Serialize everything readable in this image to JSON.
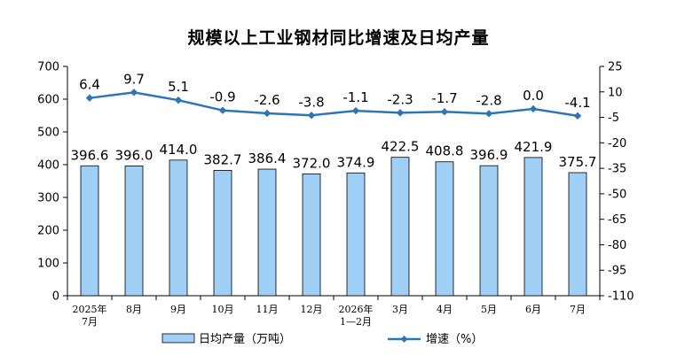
{
  "chart_data": {
    "type": "bar",
    "title": "规模以上工业钢材同比增速及日均产量",
    "categories": [
      [
        "2025年",
        "7月"
      ],
      [
        "8月"
      ],
      [
        "9月"
      ],
      [
        "10月"
      ],
      [
        "11月"
      ],
      [
        "12月"
      ],
      [
        "2026年",
        "1—2月"
      ],
      [
        "3月"
      ],
      [
        "4月"
      ],
      [
        "5月"
      ],
      [
        "6月"
      ],
      [
        "7月"
      ]
    ],
    "series": [
      {
        "name": "日均产量（万吨）",
        "type": "bar",
        "axis": "left",
        "color": "#9fcff5",
        "values": [
          396.6,
          396.0,
          414.0,
          382.7,
          386.4,
          372.0,
          374.9,
          422.5,
          408.8,
          396.9,
          421.9,
          375.7
        ],
        "labels": [
          "396.6",
          "396.0",
          "414.0",
          "382.7",
          "386.4",
          "372.0",
          "374.9",
          "422.5",
          "408.8",
          "396.9",
          "421.9",
          "375.7"
        ]
      },
      {
        "name": "增速（%）",
        "type": "line",
        "axis": "right",
        "color": "#2e75b6",
        "values": [
          6.4,
          9.7,
          5.1,
          -0.9,
          -2.6,
          -3.8,
          -1.1,
          -2.3,
          -1.7,
          -2.8,
          0.0,
          -4.1
        ],
        "labels": [
          "6.4",
          "9.7",
          "5.1",
          "-0.9",
          "-2.6",
          "-3.8",
          "-1.1",
          "-2.3",
          "-1.7",
          "-2.8",
          "0.0",
          "-4.1"
        ]
      }
    ],
    "y_left": {
      "min": 0,
      "max": 700,
      "ticks": [
        0,
        100,
        200,
        300,
        400,
        500,
        600,
        700
      ]
    },
    "y_right": {
      "min": -110,
      "max": 25,
      "ticks": [
        25,
        10,
        -5,
        -20,
        -35,
        -50,
        -65,
        -80,
        -95,
        -110
      ]
    },
    "legend_position": "bottom",
    "grid": false
  }
}
